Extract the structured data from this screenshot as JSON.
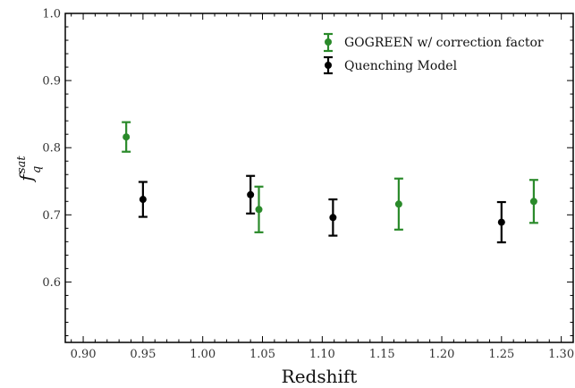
{
  "chart_data": {
    "type": "scatter",
    "xlabel": "Redshift",
    "ylabel": {
      "main": "f",
      "sup": "sat",
      "sub": "q"
    },
    "xlim": [
      0.885,
      1.31
    ],
    "ylim": [
      0.51,
      1.0
    ],
    "x_ticks": [
      0.9,
      0.95,
      1.0,
      1.05,
      1.1,
      1.15,
      1.2,
      1.25,
      1.3
    ],
    "x_tick_labels": [
      "0.90",
      "0.95",
      "1.00",
      "1.05",
      "1.10",
      "1.15",
      "1.20",
      "1.25",
      "1.30"
    ],
    "y_ticks": [
      0.6,
      0.7,
      0.8,
      0.9,
      1.0
    ],
    "y_tick_labels": [
      "0.6",
      "0.7",
      "0.8",
      "0.9",
      "1.0"
    ],
    "grid": false,
    "legend_position": "top-right",
    "series": [
      {
        "name": "GOGREEN w/ correction factor",
        "color": "#2a8a2a",
        "points": [
          {
            "x": 0.936,
            "y": 0.816,
            "err": 0.022
          },
          {
            "x": 1.047,
            "y": 0.708,
            "err": 0.034
          },
          {
            "x": 1.164,
            "y": 0.716,
            "err": 0.038
          },
          {
            "x": 1.277,
            "y": 0.72,
            "err": 0.032
          }
        ]
      },
      {
        "name": "Quenching Model",
        "color": "#000000",
        "points": [
          {
            "x": 0.95,
            "y": 0.723,
            "err": 0.026
          },
          {
            "x": 1.04,
            "y": 0.73,
            "err": 0.028
          },
          {
            "x": 1.109,
            "y": 0.696,
            "err": 0.027
          },
          {
            "x": 1.25,
            "y": 0.689,
            "err": 0.03
          }
        ]
      }
    ]
  }
}
